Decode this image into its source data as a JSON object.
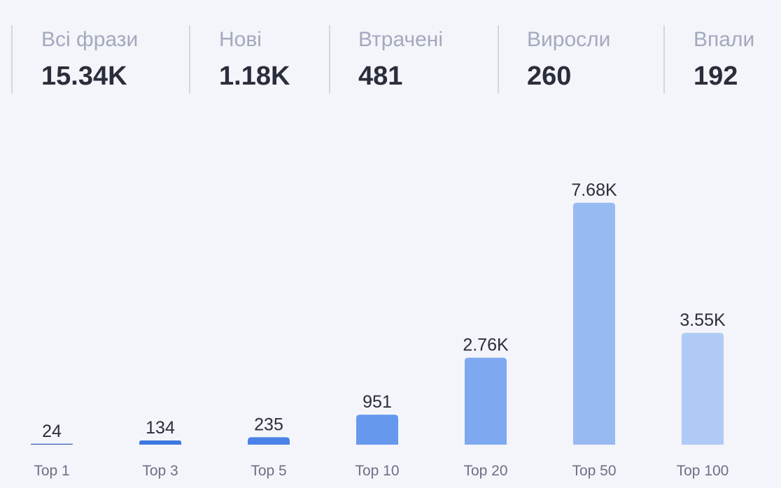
{
  "summary": {
    "items": [
      {
        "label": "Всі фрази",
        "value": "15.34K"
      },
      {
        "label": "Нові",
        "value": "1.18K"
      },
      {
        "label": "Втрачені",
        "value": "481"
      },
      {
        "label": "Виросли",
        "value": "260"
      },
      {
        "label": "Впали",
        "value": "192"
      }
    ]
  },
  "chart_data": {
    "type": "bar",
    "categories": [
      "Top 1",
      "Top 3",
      "Top 5",
      "Top 10",
      "Top 20",
      "Top 50",
      "Top 100"
    ],
    "values": [
      24,
      134,
      235,
      951,
      2760,
      7680,
      3550
    ],
    "value_labels": [
      "24",
      "134",
      "235",
      "951",
      "2.76K",
      "7.68K",
      "3.55K"
    ],
    "colors": [
      "#2f5fc2",
      "#3d77e0",
      "#4a83e8",
      "#6698ee",
      "#7ea9f0",
      "#98baf2",
      "#afcbf5"
    ],
    "title": "",
    "xlabel": "",
    "ylabel": "",
    "ylim": [
      0,
      7680
    ],
    "grid": false,
    "legend": "none"
  }
}
